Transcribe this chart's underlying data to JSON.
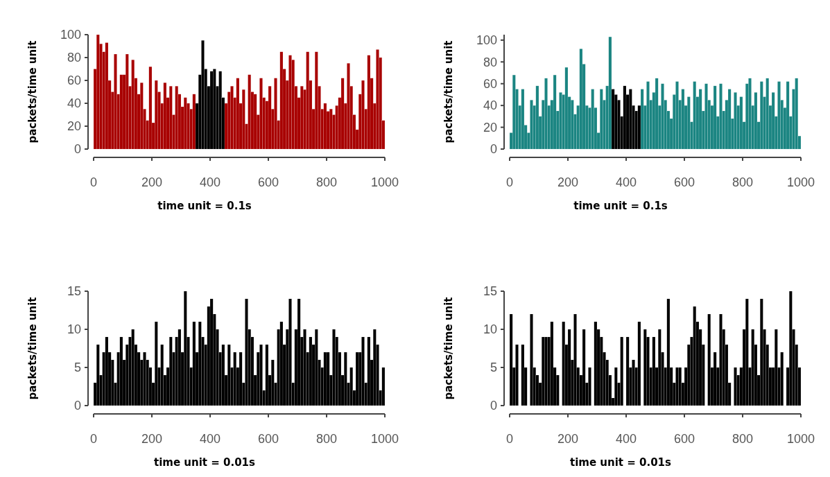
{
  "chart_data": [
    {
      "type": "bar",
      "xlabel": "time unit = 0.1s",
      "ylabel": "packets/time unit",
      "xlim": [
        0,
        1000
      ],
      "xticks": [
        0,
        200,
        400,
        600,
        800,
        1000
      ],
      "ylim": [
        0,
        100
      ],
      "yticks": [
        0,
        20,
        40,
        60,
        80,
        100
      ],
      "grid": false,
      "series": [
        {
          "color": "#a80000",
          "x": [
            5,
            15,
            25,
            35,
            45,
            55,
            65,
            75,
            85,
            95,
            105,
            115,
            125,
            135,
            145,
            155,
            165,
            175,
            185,
            195,
            205,
            215,
            225,
            235,
            245,
            255,
            265,
            275,
            285,
            295,
            305,
            315,
            325,
            335,
            345
          ],
          "values": [
            70,
            100,
            92,
            85,
            93,
            60,
            50,
            83,
            48,
            65,
            65,
            83,
            55,
            78,
            62,
            48,
            58,
            35,
            25,
            72,
            23,
            60,
            50,
            40,
            58,
            45,
            55,
            30,
            55,
            48,
            37,
            45,
            40,
            35,
            48
          ]
        },
        {
          "color": "#000000",
          "x": [
            355,
            365,
            375,
            385,
            395,
            405,
            415,
            425,
            435,
            445
          ],
          "values": [
            40,
            65,
            95,
            70,
            55,
            68,
            70,
            55,
            68,
            45
          ]
        },
        {
          "color": "#a80000",
          "x": [
            455,
            465,
            475,
            485,
            495,
            505,
            515,
            525,
            535,
            545,
            555,
            565,
            575,
            585,
            595,
            605,
            615,
            625,
            635,
            645,
            655,
            665,
            675,
            685,
            695,
            705,
            715,
            725,
            735,
            745,
            755,
            765,
            775,
            785,
            795,
            805,
            815,
            825,
            835,
            845,
            855,
            865,
            875,
            885,
            895,
            905,
            915,
            925,
            935,
            945,
            955,
            965,
            975,
            985,
            995
          ],
          "values": [
            40,
            50,
            55,
            45,
            62,
            40,
            52,
            22,
            65,
            50,
            48,
            30,
            62,
            45,
            42,
            55,
            35,
            62,
            25,
            85,
            70,
            60,
            82,
            78,
            55,
            45,
            55,
            52,
            85,
            60,
            35,
            85,
            55,
            35,
            40,
            33,
            35,
            30,
            38,
            45,
            62,
            40,
            75,
            55,
            30,
            17,
            48,
            60,
            35,
            82,
            62,
            40,
            87,
            80,
            25
          ]
        }
      ]
    },
    {
      "type": "bar",
      "xlabel": "time unit = 0.1s",
      "ylabel": "packets/time unit",
      "xlim": [
        0,
        1000
      ],
      "xticks": [
        0,
        200,
        400,
        600,
        800,
        1000
      ],
      "ylim": [
        0,
        105
      ],
      "yticks": [
        0,
        20,
        40,
        60,
        80,
        100
      ],
      "grid": false,
      "series": [
        {
          "color": "#1b8582",
          "x": [
            5,
            15,
            25,
            35,
            45,
            55,
            65,
            75,
            85,
            95,
            105,
            115,
            125,
            135,
            145,
            155,
            165,
            175,
            185,
            195,
            205,
            215,
            225,
            235,
            245,
            255,
            265,
            275,
            285,
            295,
            305,
            315,
            325,
            335,
            345
          ],
          "values": [
            15,
            68,
            55,
            40,
            55,
            22,
            15,
            45,
            40,
            58,
            30,
            45,
            65,
            40,
            45,
            68,
            35,
            52,
            50,
            75,
            48,
            45,
            32,
            40,
            92,
            78,
            40,
            38,
            55,
            38,
            15,
            55,
            45,
            58,
            103
          ]
        },
        {
          "color": "#000000",
          "x": [
            355,
            365,
            375,
            385,
            395,
            405,
            415,
            425,
            435,
            445
          ],
          "values": [
            55,
            50,
            45,
            30,
            58,
            50,
            55,
            40,
            35,
            40
          ]
        },
        {
          "color": "#1b8582",
          "x": [
            455,
            465,
            475,
            485,
            495,
            505,
            515,
            525,
            535,
            545,
            555,
            565,
            575,
            585,
            595,
            605,
            615,
            625,
            635,
            645,
            655,
            665,
            675,
            685,
            695,
            705,
            715,
            725,
            735,
            745,
            755,
            765,
            775,
            785,
            795,
            805,
            815,
            825,
            835,
            845,
            855,
            865,
            875,
            885,
            895,
            905,
            915,
            925,
            935,
            945,
            955,
            965,
            975,
            985,
            995
          ],
          "values": [
            55,
            40,
            62,
            45,
            52,
            65,
            40,
            60,
            45,
            35,
            28,
            50,
            62,
            45,
            55,
            40,
            48,
            25,
            62,
            48,
            55,
            35,
            60,
            45,
            40,
            58,
            30,
            60,
            35,
            45,
            55,
            28,
            52,
            40,
            48,
            25,
            60,
            65,
            40,
            52,
            25,
            62,
            48,
            65,
            40,
            52,
            30,
            62,
            45,
            38,
            62,
            30,
            55,
            65,
            12
          ]
        }
      ]
    },
    {
      "type": "bar",
      "xlabel": "time unit = 0.01s",
      "ylabel": "packets/time unit",
      "xlim": [
        0,
        1000
      ],
      "xticks": [
        0,
        200,
        400,
        600,
        800,
        1000
      ],
      "ylim": [
        0,
        15
      ],
      "yticks": [
        0,
        5,
        10,
        15
      ],
      "grid": false,
      "series": [
        {
          "color": "#000000",
          "x": [
            5,
            15,
            25,
            35,
            45,
            55,
            65,
            75,
            85,
            95,
            105,
            115,
            125,
            135,
            145,
            155,
            165,
            175,
            185,
            195,
            205,
            215,
            225,
            235,
            245,
            255,
            265,
            275,
            285,
            295,
            305,
            315,
            325,
            335,
            345,
            355,
            365,
            375,
            385,
            395,
            405,
            415,
            425,
            435,
            445,
            455,
            465,
            475,
            485,
            495,
            505,
            515,
            525,
            535,
            545,
            555,
            565,
            575,
            585,
            595,
            605,
            615,
            625,
            635,
            645,
            655,
            665,
            675,
            685,
            695,
            705,
            715,
            725,
            735,
            745,
            755,
            765,
            775,
            785,
            795,
            805,
            815,
            825,
            835,
            845,
            855,
            865,
            875,
            885,
            895,
            905,
            915,
            925,
            935,
            945,
            955,
            965,
            975,
            985,
            995
          ],
          "values": [
            3,
            8,
            4,
            7,
            9,
            7,
            6,
            3,
            7,
            9,
            6,
            8,
            9,
            10,
            8,
            7,
            6,
            7,
            6,
            5,
            3,
            11,
            5,
            8,
            4,
            5,
            9,
            7,
            9,
            10,
            7,
            15,
            9,
            5,
            11,
            7,
            11,
            9,
            8,
            13,
            14,
            12,
            10,
            7,
            8,
            4,
            8,
            5,
            7,
            5,
            7,
            3,
            14,
            10,
            9,
            4,
            7,
            8,
            2,
            8,
            4,
            6,
            3,
            10,
            11,
            8,
            10,
            14,
            3,
            10,
            14,
            9,
            10,
            7,
            9,
            8,
            10,
            6,
            5,
            7,
            7,
            4,
            10,
            9,
            7,
            4,
            7,
            3,
            5,
            2,
            7,
            7,
            9,
            3,
            9,
            6,
            10,
            8,
            2,
            5
          ]
        }
      ]
    },
    {
      "type": "bar",
      "xlabel": "time unit = 0.01s",
      "ylabel": "packets/time unit",
      "xlim": [
        0,
        1000
      ],
      "xticks": [
        0,
        200,
        400,
        600,
        800,
        1000
      ],
      "ylim": [
        0,
        15
      ],
      "yticks": [
        0,
        5,
        10,
        15
      ],
      "grid": false,
      "series": [
        {
          "color": "#000000",
          "x": [
            5,
            15,
            25,
            35,
            45,
            55,
            65,
            75,
            85,
            95,
            105,
            115,
            125,
            135,
            145,
            155,
            165,
            175,
            185,
            195,
            205,
            215,
            225,
            235,
            245,
            255,
            265,
            275,
            285,
            295,
            305,
            315,
            325,
            335,
            345,
            355,
            365,
            375,
            385,
            395,
            405,
            415,
            425,
            435,
            445,
            455,
            465,
            475,
            485,
            495,
            505,
            515,
            525,
            535,
            545,
            555,
            565,
            575,
            585,
            595,
            605,
            615,
            625,
            635,
            645,
            655,
            665,
            675,
            685,
            695,
            705,
            715,
            725,
            735,
            745,
            755,
            765,
            775,
            785,
            795,
            805,
            815,
            825,
            835,
            845,
            855,
            865,
            875,
            885,
            895,
            905,
            915,
            925,
            935,
            945,
            955,
            965,
            975,
            985,
            995
          ],
          "values": [
            12,
            5,
            8,
            0,
            8,
            5,
            0,
            12,
            5,
            4,
            3,
            9,
            9,
            9,
            11,
            5,
            4,
            0,
            11,
            8,
            10,
            6,
            12,
            5,
            4,
            10,
            3,
            5,
            0,
            11,
            10,
            9,
            7,
            6,
            4,
            1,
            5,
            3,
            9,
            0,
            9,
            5,
            6,
            5,
            11,
            0,
            10,
            9,
            5,
            9,
            5,
            10,
            7,
            5,
            14,
            5,
            3,
            5,
            5,
            3,
            5,
            8,
            9,
            13,
            11,
            10,
            8,
            0,
            12,
            5,
            7,
            5,
            12,
            10,
            8,
            3,
            0,
            5,
            4,
            5,
            10,
            14,
            5,
            10,
            8,
            4,
            14,
            10,
            8,
            5,
            5,
            10,
            5,
            7,
            0,
            5,
            15,
            10,
            8,
            5
          ]
        }
      ]
    }
  ]
}
